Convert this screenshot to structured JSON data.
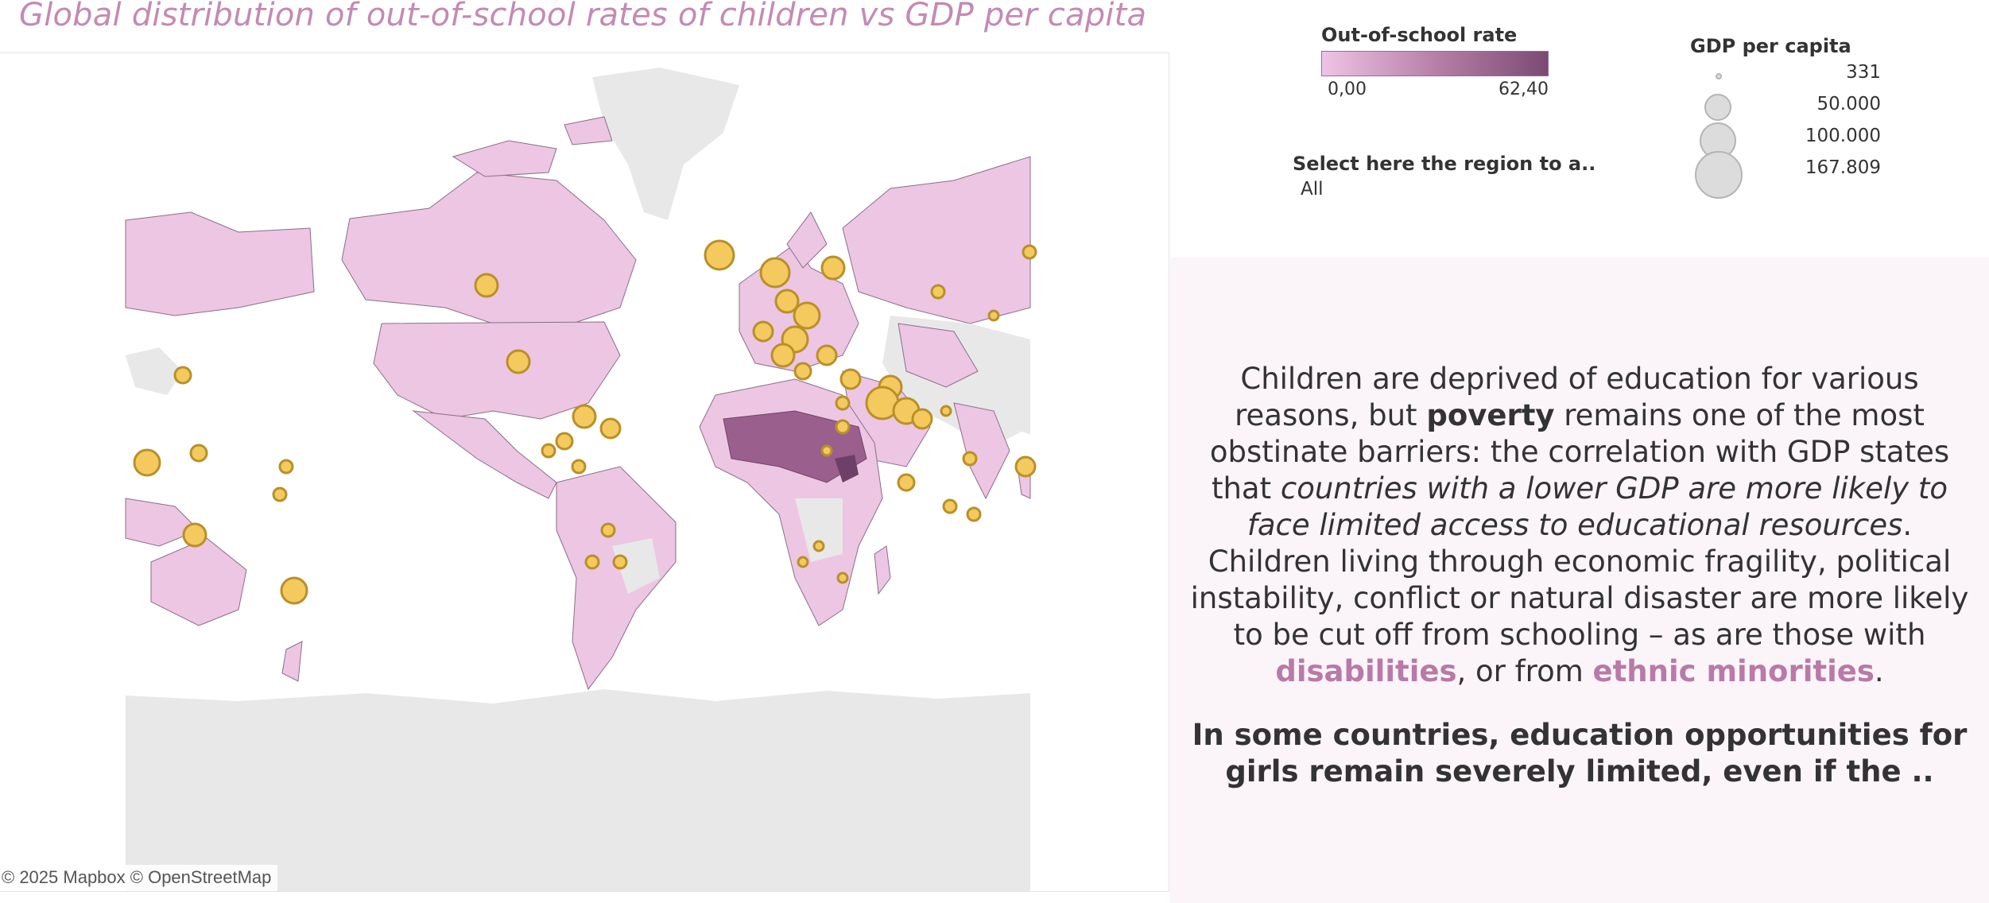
{
  "title": "Global distribution of out-of-school rates of children vs GDP per capita",
  "legend_rate": {
    "title": "Out-of-school rate",
    "min": "0,00",
    "max": "62,40"
  },
  "filter": {
    "label": "Select here the region to a..",
    "value": "All"
  },
  "legend_gdp": {
    "title": "GDP per capita",
    "items": [
      {
        "label": "331",
        "value": 331
      },
      {
        "label": "50.000",
        "value": 50000
      },
      {
        "label": "100.000",
        "value": 100000
      },
      {
        "label": "167.809",
        "value": 167809
      }
    ]
  },
  "text": {
    "p1_a": "Children are deprived of education for various reasons, but ",
    "p1_bold": "poverty",
    "p1_b": " remains one of the most obstinate barriers: the correlation with GDP states that ",
    "p1_italic": "countries with a lower GDP are more likely to face limited access to educational resources",
    "p1_c": ". Children living through economic fragility, political instability, conflict or natural disaster are more likely to be cut off from schooling – as are those with ",
    "p1_accent1": "disabilities",
    "p1_d": ", or from ",
    "p1_accent2": "ethnic minorities",
    "p1_e": ".",
    "p2": "In some countries, education opportunities for girls remain severely limited, even if the .."
  },
  "attribution": "© 2025 Mapbox © OpenStreetMap",
  "colors": {
    "title": "#c48ab2",
    "accent": "#b87aa7",
    "land_data": "#ecc6e3",
    "land_nodata": "#e8e8e8",
    "high_rate": "#9a5f8c",
    "bubble_fill": "#f4c95d",
    "bubble_stroke": "#b8902a",
    "panel_bg": "#fbf4f9"
  }
}
